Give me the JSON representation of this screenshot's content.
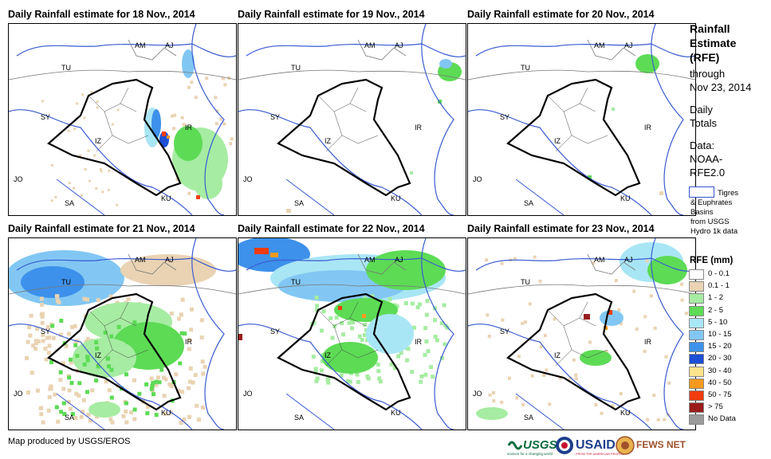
{
  "panels": [
    {
      "title": "Daily Rainfall estimate for 18 Nov., 2014"
    },
    {
      "title": "Daily Rainfall estimate for 19 Nov., 2014"
    },
    {
      "title": "Daily Rainfall estimate for 20 Nov., 2014"
    },
    {
      "title": "Daily Rainfall estimate for 21 Nov., 2014"
    },
    {
      "title": "Daily Rainfall estimate for 22 Nov., 2014"
    },
    {
      "title": "Daily Rainfall estimate for 23 Nov., 2014"
    }
  ],
  "map_labels": {
    "am": "AM",
    "aj": "AJ",
    "tu": "TU",
    "sy": "SY",
    "iz": "IZ",
    "ir": "IR",
    "jo": "JO",
    "sa": "SA",
    "ku": "KU"
  },
  "legend": {
    "title_lines": [
      "Rainfall",
      "Estimate",
      "(RFE)"
    ],
    "through": "through",
    "date": "Nov 23, 2014",
    "daily": "Daily",
    "totals": "Totals",
    "data_label": "Data:",
    "data_source_1": "NOAA-",
    "data_source_2": "RFE2.0",
    "basin_lines": [
      "Tigres",
      "& Euphrates",
      "Basins",
      "from USGS",
      "Hydro 1k data"
    ],
    "rfe_title": "RFE (mm)",
    "classes": [
      {
        "label": "0 - 0.1",
        "color": "#ffffff"
      },
      {
        "label": "0.1 - 1",
        "color": "#e9d3b3"
      },
      {
        "label": "1 - 2",
        "color": "#a6eca2"
      },
      {
        "label": "2 - 5",
        "color": "#5ddb55"
      },
      {
        "label": "5 - 10",
        "color": "#a9e6f5"
      },
      {
        "label": "10 - 15",
        "color": "#82c7f3"
      },
      {
        "label": "15 - 20",
        "color": "#3d91eb"
      },
      {
        "label": "20 - 30",
        "color": "#1d4fd6"
      },
      {
        "label": "30 - 40",
        "color": "#fde38c"
      },
      {
        "label": "40 - 50",
        "color": "#f59a1e"
      },
      {
        "label": "50 - 75",
        "color": "#f03c0e"
      },
      {
        "label": "> 75",
        "color": "#9a1d1d"
      },
      {
        "label": "No Data",
        "color": "#9a9a9a"
      }
    ]
  },
  "footer": {
    "credit": "Map produced by USGS/EROS"
  },
  "logos": {
    "usgs": "USGS",
    "usgs_tagline": "science for a changing world",
    "usaid": "USAID",
    "usaid_tagline": "FROM THE AMERICAN PEOPLE",
    "fews": "FEWS NET"
  }
}
